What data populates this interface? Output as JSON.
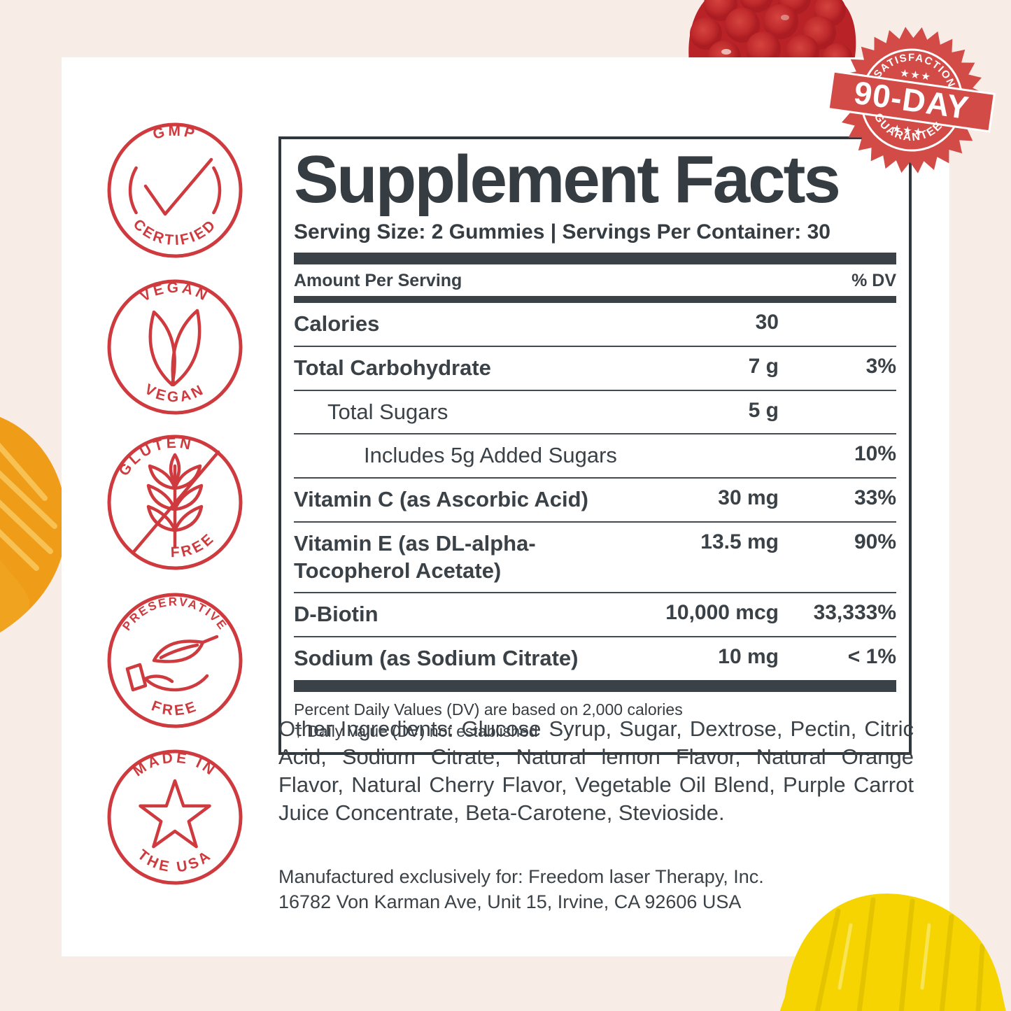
{
  "colors": {
    "background": "#f8ece6",
    "badge_red": "#ce3a3e",
    "stamp_red": "#d24b47",
    "ink": "#353c42",
    "raspberry_red": "#bd2528",
    "orange_gummy": "#ef9c18",
    "lemon_gummy": "#f5d402"
  },
  "stamp": {
    "top": "SATISFACTION",
    "stars_top": "★ ★ ★",
    "middle": "90-DAY",
    "stars_bottom": "★ ★ ★",
    "bottom": "GUARANTEE"
  },
  "badges": [
    {
      "top": "GMP",
      "bottom": "CERTIFIED",
      "icon": "checkmark-icon"
    },
    {
      "top": "VEGAN",
      "bottom": "VEGAN",
      "icon": "leaves-icon"
    },
    {
      "top": "GLUTEN",
      "bottom": "FREE",
      "icon": "wheat-crossed-icon"
    },
    {
      "top": "PRESERVATIVE",
      "bottom": "FREE",
      "icon": "leaf-in-hand-icon"
    },
    {
      "top": "MADE IN",
      "bottom": "THE USA",
      "icon": "star-icon"
    }
  ],
  "panel": {
    "title": "Supplement Facts",
    "serving_line": "Serving Size: 2 Gummies | Servings Per Container: 30",
    "col_amount": "Amount Per Serving",
    "col_dv": "% DV",
    "rows": [
      {
        "name": "Calories",
        "amount": "30",
        "dv": ""
      },
      {
        "name": "Total Carbohydrate",
        "amount": "7 g",
        "dv": "3%"
      },
      {
        "name": "Total Sugars",
        "amount": "5 g",
        "dv": ""
      },
      {
        "name": "Includes  5g Added Sugars",
        "amount": "",
        "dv": "10%"
      },
      {
        "name": "Vitamin C (as Ascorbic Acid)",
        "amount": "30 mg",
        "dv": "33%"
      },
      {
        "name": "Vitamin E (as DL-alpha-Tocopherol Acetate)",
        "amount": "13.5 mg",
        "dv": "90%"
      },
      {
        "name": "D-Biotin",
        "amount": "10,000 mcg",
        "dv": "33,333%"
      },
      {
        "name": "Sodium (as Sodium Citrate)",
        "amount": "10 mg",
        "dv": "< 1%"
      }
    ],
    "footnote1": "Percent Daily Values (DV) are based on 2,000 calories",
    "footnote2": "†   Daily Value (DV) not established"
  },
  "other_ingredients": "Other Ingredients: Glucose Syrup, Sugar, Dextrose, Pectin, Citric Acid, Sodium Citrate, Natural lemon Flavor, Natural Orange Flavor, Natural Cherry Flavor, Vegetable Oil Blend, Purple Carrot Juice Concentrate, Beta-Carotene, Stevioside.",
  "manufacturer_line1": "Manufactured exclusively for: Freedom laser Therapy, Inc.",
  "manufacturer_line2": "16782 Von Karman Ave, Unit 15, Irvine, CA 92606 USA"
}
